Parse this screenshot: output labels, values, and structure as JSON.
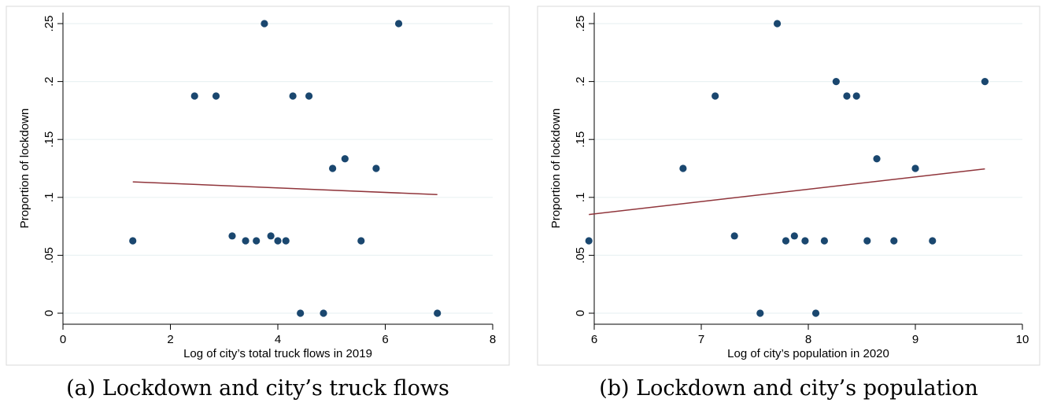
{
  "chart_data": [
    {
      "type": "scatter",
      "caption": "(a) Lockdown and city’s truck flows",
      "xlabel": "Log of city’s total truck flows in 2019",
      "ylabel": "Proportion of lockdown",
      "xlim": [
        0,
        8
      ],
      "ylim": [
        0,
        0.25
      ],
      "xticks": [
        0,
        2,
        4,
        6,
        8
      ],
      "xtick_labels": [
        "0",
        "2",
        "4",
        "6",
        "8"
      ],
      "yticks": [
        0,
        0.05,
        0.1,
        0.15,
        0.2,
        0.25
      ],
      "ytick_labels": [
        "0",
        ".05",
        ".1",
        ".15",
        ".2",
        ".25"
      ],
      "grid": true,
      "points": [
        {
          "x": 1.3,
          "y": 0.0625
        },
        {
          "x": 2.45,
          "y": 0.1875
        },
        {
          "x": 2.85,
          "y": 0.1875
        },
        {
          "x": 3.15,
          "y": 0.0667
        },
        {
          "x": 3.4,
          "y": 0.0625
        },
        {
          "x": 3.6,
          "y": 0.0625
        },
        {
          "x": 3.75,
          "y": 0.25
        },
        {
          "x": 3.87,
          "y": 0.0667
        },
        {
          "x": 4.0,
          "y": 0.0625
        },
        {
          "x": 4.15,
          "y": 0.0625
        },
        {
          "x": 4.28,
          "y": 0.1875
        },
        {
          "x": 4.42,
          "y": 0.0
        },
        {
          "x": 4.58,
          "y": 0.1875
        },
        {
          "x": 4.85,
          "y": 0.0
        },
        {
          "x": 5.02,
          "y": 0.125
        },
        {
          "x": 5.25,
          "y": 0.1333
        },
        {
          "x": 5.55,
          "y": 0.0625
        },
        {
          "x": 5.83,
          "y": 0.125
        },
        {
          "x": 6.25,
          "y": 0.25
        },
        {
          "x": 6.97,
          "y": 0.0
        }
      ],
      "fit_line": {
        "x": [
          1.3,
          6.97
        ],
        "y": [
          0.1134,
          0.1024
        ]
      },
      "colors": {
        "marker": "#1a476f",
        "fit": "#90353b",
        "grid": "#eaf2f3",
        "frame": "#000000"
      }
    },
    {
      "type": "scatter",
      "caption": "(b) Lockdown and city’s population",
      "xlabel": "Log of city’s population in 2020",
      "ylabel": "Proportion of lockdown",
      "xlim": [
        6,
        10
      ],
      "ylim": [
        0,
        0.25
      ],
      "xticks": [
        6,
        7,
        8,
        9,
        10
      ],
      "xtick_labels": [
        "6",
        "7",
        "8",
        "9",
        "10"
      ],
      "yticks": [
        0,
        0.05,
        0.1,
        0.15,
        0.2,
        0.25
      ],
      "ytick_labels": [
        "0",
        ".05",
        ".1",
        ".15",
        ".2",
        ".25"
      ],
      "grid": true,
      "points": [
        {
          "x": 5.95,
          "y": 0.0625
        },
        {
          "x": 6.83,
          "y": 0.125
        },
        {
          "x": 7.13,
          "y": 0.1875
        },
        {
          "x": 7.31,
          "y": 0.0667
        },
        {
          "x": 7.55,
          "y": 0.0
        },
        {
          "x": 7.71,
          "y": 0.25
        },
        {
          "x": 7.79,
          "y": 0.0625
        },
        {
          "x": 7.87,
          "y": 0.0667
        },
        {
          "x": 7.97,
          "y": 0.0625
        },
        {
          "x": 8.07,
          "y": 0.0
        },
        {
          "x": 8.15,
          "y": 0.0625
        },
        {
          "x": 8.26,
          "y": 0.2
        },
        {
          "x": 8.36,
          "y": 0.1875
        },
        {
          "x": 8.45,
          "y": 0.1875
        },
        {
          "x": 8.55,
          "y": 0.0625
        },
        {
          "x": 8.64,
          "y": 0.1333
        },
        {
          "x": 8.8,
          "y": 0.0625
        },
        {
          "x": 9.0,
          "y": 0.125
        },
        {
          "x": 9.16,
          "y": 0.0625
        },
        {
          "x": 9.65,
          "y": 0.2
        }
      ],
      "fit_line": {
        "x": [
          5.95,
          9.65
        ],
        "y": [
          0.0852,
          0.1246
        ]
      },
      "colors": {
        "marker": "#1a476f",
        "fit": "#90353b",
        "grid": "#eaf2f3",
        "frame": "#000000"
      }
    }
  ]
}
